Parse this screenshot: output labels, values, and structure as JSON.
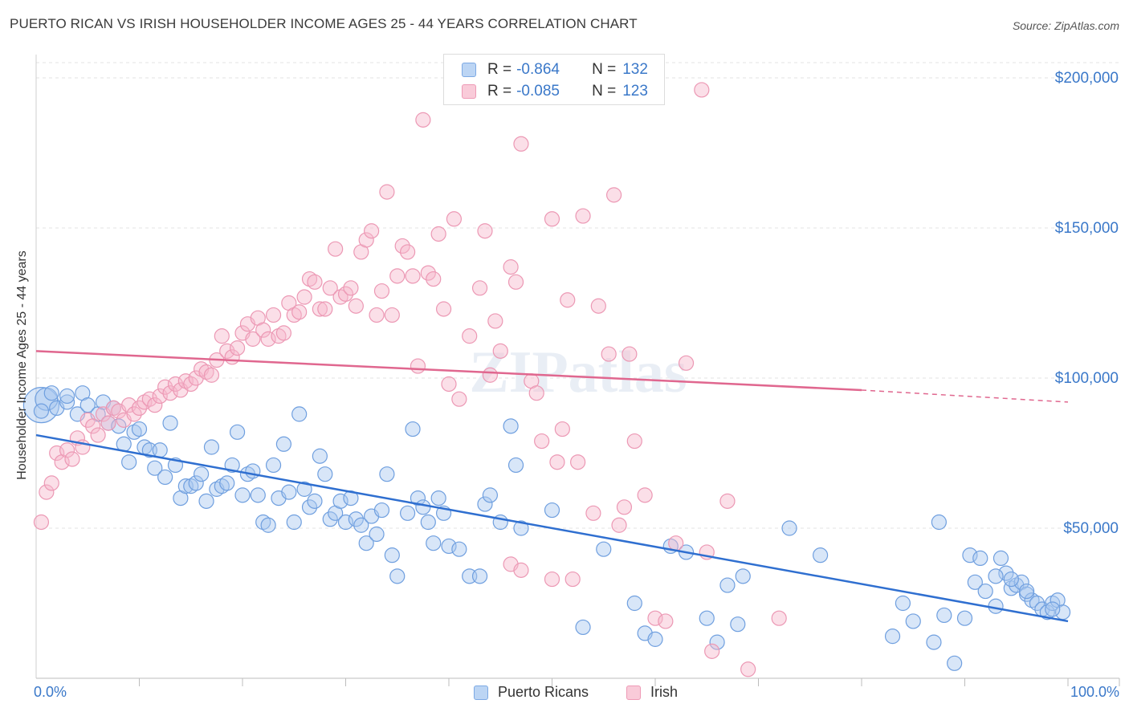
{
  "title": "PUERTO RICAN VS IRISH HOUSEHOLDER INCOME AGES 25 - 44 YEARS CORRELATION CHART",
  "source": "Source: ZipAtlas.com",
  "watermark": "ZIPatlas",
  "legend": {
    "rows": [
      {
        "r_label": "R =",
        "r_value": "-0.864",
        "n_label": "N =",
        "n_value": "132",
        "color": "#a9c8f0"
      },
      {
        "r_label": "R =",
        "r_value": "-0.085",
        "n_label": "N =",
        "n_value": "123",
        "color": "#f6b8cc"
      }
    ]
  },
  "bottom_legend": {
    "items": [
      {
        "label": "Puerto Ricans",
        "color": "#a9c8f0"
      },
      {
        "label": "Irish",
        "color": "#f6b8cc"
      }
    ]
  },
  "chart_data": {
    "type": "scatter",
    "title": "PUERTO RICAN VS IRISH HOUSEHOLDER INCOME AGES 25 - 44 YEARS CORRELATION CHART",
    "xlabel": "",
    "ylabel": "Householder Income Ages 25 - 44 years",
    "x_tick_labels": [
      "0.0%",
      "100.0%"
    ],
    "y_tick_labels": [
      "$50,000",
      "$100,000",
      "$150,000",
      "$200,000"
    ],
    "y_ticks": [
      50000,
      100000,
      150000,
      200000
    ],
    "xlim": [
      0,
      1.05
    ],
    "ylim": [
      0,
      210000
    ],
    "grid": true,
    "legend_position": "top-center",
    "colors": {
      "puerto_ricans": "#5b93dd",
      "irish": "#ee8fae",
      "pr_line": "#2f6fd0",
      "irish_line": "#e0678f",
      "tick_text": "#3a78c9"
    },
    "series": [
      {
        "name": "Puerto Ricans",
        "r": -0.864,
        "n": 132,
        "trend": {
          "x": [
            0.0,
            1.0
          ],
          "y": [
            81000,
            19000
          ]
        },
        "points": [
          [
            0.005,
            91000
          ],
          [
            0.01,
            93000
          ],
          [
            0.015,
            95000
          ],
          [
            0.02,
            90000
          ],
          [
            0.03,
            92000
          ],
          [
            0.04,
            88000
          ],
          [
            0.045,
            95000
          ],
          [
            0.05,
            91000
          ],
          [
            0.06,
            88000
          ],
          [
            0.065,
            92000
          ],
          [
            0.07,
            85000
          ],
          [
            0.075,
            90000
          ],
          [
            0.08,
            84000
          ],
          [
            0.085,
            78000
          ],
          [
            0.09,
            72000
          ],
          [
            0.095,
            82000
          ],
          [
            0.1,
            83000
          ],
          [
            0.105,
            77000
          ],
          [
            0.11,
            76000
          ],
          [
            0.115,
            70000
          ],
          [
            0.12,
            76000
          ],
          [
            0.125,
            67000
          ],
          [
            0.13,
            85000
          ],
          [
            0.135,
            71000
          ],
          [
            0.14,
            60000
          ],
          [
            0.145,
            64000
          ],
          [
            0.15,
            64000
          ],
          [
            0.155,
            65000
          ],
          [
            0.16,
            68000
          ],
          [
            0.165,
            59000
          ],
          [
            0.17,
            77000
          ],
          [
            0.175,
            63000
          ],
          [
            0.18,
            64000
          ],
          [
            0.185,
            65000
          ],
          [
            0.19,
            71000
          ],
          [
            0.195,
            82000
          ],
          [
            0.2,
            61000
          ],
          [
            0.205,
            68000
          ],
          [
            0.21,
            69000
          ],
          [
            0.215,
            61000
          ],
          [
            0.22,
            52000
          ],
          [
            0.225,
            51000
          ],
          [
            0.23,
            71000
          ],
          [
            0.235,
            60000
          ],
          [
            0.24,
            78000
          ],
          [
            0.245,
            62000
          ],
          [
            0.25,
            52000
          ],
          [
            0.255,
            88000
          ],
          [
            0.26,
            63000
          ],
          [
            0.265,
            57000
          ],
          [
            0.27,
            59000
          ],
          [
            0.275,
            74000
          ],
          [
            0.28,
            68000
          ],
          [
            0.285,
            53000
          ],
          [
            0.29,
            55000
          ],
          [
            0.295,
            59000
          ],
          [
            0.3,
            52000
          ],
          [
            0.305,
            60000
          ],
          [
            0.31,
            53000
          ],
          [
            0.315,
            51000
          ],
          [
            0.32,
            45000
          ],
          [
            0.325,
            54000
          ],
          [
            0.33,
            48000
          ],
          [
            0.335,
            56000
          ],
          [
            0.34,
            68000
          ],
          [
            0.345,
            41000
          ],
          [
            0.35,
            34000
          ],
          [
            0.36,
            55000
          ],
          [
            0.365,
            83000
          ],
          [
            0.37,
            60000
          ],
          [
            0.375,
            57000
          ],
          [
            0.38,
            52000
          ],
          [
            0.385,
            45000
          ],
          [
            0.39,
            60000
          ],
          [
            0.395,
            55000
          ],
          [
            0.4,
            44000
          ],
          [
            0.41,
            43000
          ],
          [
            0.42,
            34000
          ],
          [
            0.43,
            34000
          ],
          [
            0.435,
            58000
          ],
          [
            0.44,
            61000
          ],
          [
            0.45,
            52000
          ],
          [
            0.46,
            84000
          ],
          [
            0.465,
            71000
          ],
          [
            0.47,
            50000
          ],
          [
            0.5,
            56000
          ],
          [
            0.53,
            17000
          ],
          [
            0.55,
            43000
          ],
          [
            0.58,
            25000
          ],
          [
            0.59,
            15000
          ],
          [
            0.6,
            13000
          ],
          [
            0.615,
            44000
          ],
          [
            0.63,
            42000
          ],
          [
            0.65,
            20000
          ],
          [
            0.66,
            12000
          ],
          [
            0.67,
            31000
          ],
          [
            0.68,
            18000
          ],
          [
            0.685,
            34000
          ],
          [
            0.73,
            50000
          ],
          [
            0.76,
            41000
          ],
          [
            0.83,
            14000
          ],
          [
            0.84,
            25000
          ],
          [
            0.85,
            19000
          ],
          [
            0.87,
            12000
          ],
          [
            0.875,
            52000
          ],
          [
            0.88,
            21000
          ],
          [
            0.89,
            5000
          ],
          [
            0.9,
            20000
          ],
          [
            0.905,
            41000
          ],
          [
            0.91,
            32000
          ],
          [
            0.915,
            40000
          ],
          [
            0.92,
            29000
          ],
          [
            0.93,
            24000
          ],
          [
            0.935,
            40000
          ],
          [
            0.94,
            35000
          ],
          [
            0.945,
            30000
          ],
          [
            0.95,
            31000
          ],
          [
            0.955,
            32000
          ],
          [
            0.96,
            28000
          ],
          [
            0.965,
            26000
          ],
          [
            0.97,
            25000
          ],
          [
            0.975,
            23000
          ],
          [
            0.98,
            22000
          ],
          [
            0.985,
            25000
          ],
          [
            0.99,
            26000
          ],
          [
            0.995,
            22000
          ],
          [
            0.985,
            23000
          ],
          [
            0.96,
            29000
          ],
          [
            0.945,
            33000
          ],
          [
            0.93,
            34000
          ],
          [
            0.005,
            89000
          ],
          [
            0.03,
            94000
          ]
        ]
      },
      {
        "name": "Irish",
        "r": -0.085,
        "n": 123,
        "trend": {
          "x": [
            0.0,
            0.8
          ],
          "y": [
            109000,
            96000
          ],
          "dashed_to": [
            1.0,
            92000
          ]
        },
        "points": [
          [
            0.005,
            52000
          ],
          [
            0.01,
            62000
          ],
          [
            0.015,
            65000
          ],
          [
            0.02,
            75000
          ],
          [
            0.025,
            72000
          ],
          [
            0.03,
            76000
          ],
          [
            0.035,
            73000
          ],
          [
            0.04,
            80000
          ],
          [
            0.045,
            77000
          ],
          [
            0.05,
            86000
          ],
          [
            0.055,
            84000
          ],
          [
            0.06,
            81000
          ],
          [
            0.065,
            88000
          ],
          [
            0.07,
            85000
          ],
          [
            0.075,
            90000
          ],
          [
            0.08,
            89000
          ],
          [
            0.085,
            86000
          ],
          [
            0.09,
            91000
          ],
          [
            0.095,
            88000
          ],
          [
            0.1,
            90000
          ],
          [
            0.105,
            92000
          ],
          [
            0.11,
            93000
          ],
          [
            0.115,
            91000
          ],
          [
            0.12,
            94000
          ],
          [
            0.125,
            97000
          ],
          [
            0.13,
            95000
          ],
          [
            0.135,
            98000
          ],
          [
            0.14,
            96000
          ],
          [
            0.145,
            99000
          ],
          [
            0.15,
            98000
          ],
          [
            0.155,
            100000
          ],
          [
            0.16,
            103000
          ],
          [
            0.165,
            102000
          ],
          [
            0.17,
            101000
          ],
          [
            0.175,
            106000
          ],
          [
            0.18,
            114000
          ],
          [
            0.185,
            109000
          ],
          [
            0.19,
            107000
          ],
          [
            0.195,
            110000
          ],
          [
            0.2,
            115000
          ],
          [
            0.205,
            118000
          ],
          [
            0.21,
            113000
          ],
          [
            0.215,
            120000
          ],
          [
            0.22,
            116000
          ],
          [
            0.225,
            113000
          ],
          [
            0.23,
            121000
          ],
          [
            0.235,
            114000
          ],
          [
            0.24,
            115000
          ],
          [
            0.245,
            125000
          ],
          [
            0.25,
            121000
          ],
          [
            0.255,
            122000
          ],
          [
            0.26,
            127000
          ],
          [
            0.265,
            133000
          ],
          [
            0.27,
            132000
          ],
          [
            0.275,
            123000
          ],
          [
            0.28,
            123000
          ],
          [
            0.285,
            130000
          ],
          [
            0.29,
            143000
          ],
          [
            0.295,
            127000
          ],
          [
            0.3,
            128000
          ],
          [
            0.305,
            130000
          ],
          [
            0.31,
            124000
          ],
          [
            0.315,
            142000
          ],
          [
            0.32,
            146000
          ],
          [
            0.325,
            149000
          ],
          [
            0.33,
            121000
          ],
          [
            0.335,
            129000
          ],
          [
            0.34,
            162000
          ],
          [
            0.345,
            121000
          ],
          [
            0.35,
            134000
          ],
          [
            0.355,
            144000
          ],
          [
            0.36,
            142000
          ],
          [
            0.365,
            134000
          ],
          [
            0.37,
            104000
          ],
          [
            0.375,
            186000
          ],
          [
            0.38,
            135000
          ],
          [
            0.385,
            133000
          ],
          [
            0.39,
            148000
          ],
          [
            0.395,
            123000
          ],
          [
            0.4,
            98000
          ],
          [
            0.405,
            153000
          ],
          [
            0.41,
            93000
          ],
          [
            0.42,
            114000
          ],
          [
            0.43,
            130000
          ],
          [
            0.435,
            149000
          ],
          [
            0.44,
            101000
          ],
          [
            0.445,
            119000
          ],
          [
            0.45,
            109000
          ],
          [
            0.46,
            137000
          ],
          [
            0.465,
            132000
          ],
          [
            0.47,
            178000
          ],
          [
            0.48,
            99000
          ],
          [
            0.485,
            95000
          ],
          [
            0.49,
            79000
          ],
          [
            0.5,
            153000
          ],
          [
            0.505,
            72000
          ],
          [
            0.51,
            83000
          ],
          [
            0.515,
            126000
          ],
          [
            0.52,
            33000
          ],
          [
            0.525,
            72000
          ],
          [
            0.53,
            154000
          ],
          [
            0.54,
            55000
          ],
          [
            0.545,
            124000
          ],
          [
            0.555,
            108000
          ],
          [
            0.56,
            161000
          ],
          [
            0.565,
            51000
          ],
          [
            0.57,
            57000
          ],
          [
            0.575,
            108000
          ],
          [
            0.58,
            79000
          ],
          [
            0.59,
            61000
          ],
          [
            0.6,
            20000
          ],
          [
            0.61,
            19000
          ],
          [
            0.62,
            45000
          ],
          [
            0.63,
            105000
          ],
          [
            0.645,
            196000
          ],
          [
            0.65,
            42000
          ],
          [
            0.655,
            9000
          ],
          [
            0.67,
            59000
          ],
          [
            0.69,
            3000
          ],
          [
            0.72,
            20000
          ],
          [
            0.46,
            38000
          ],
          [
            0.47,
            36000
          ],
          [
            0.5,
            33000
          ]
        ]
      }
    ]
  }
}
